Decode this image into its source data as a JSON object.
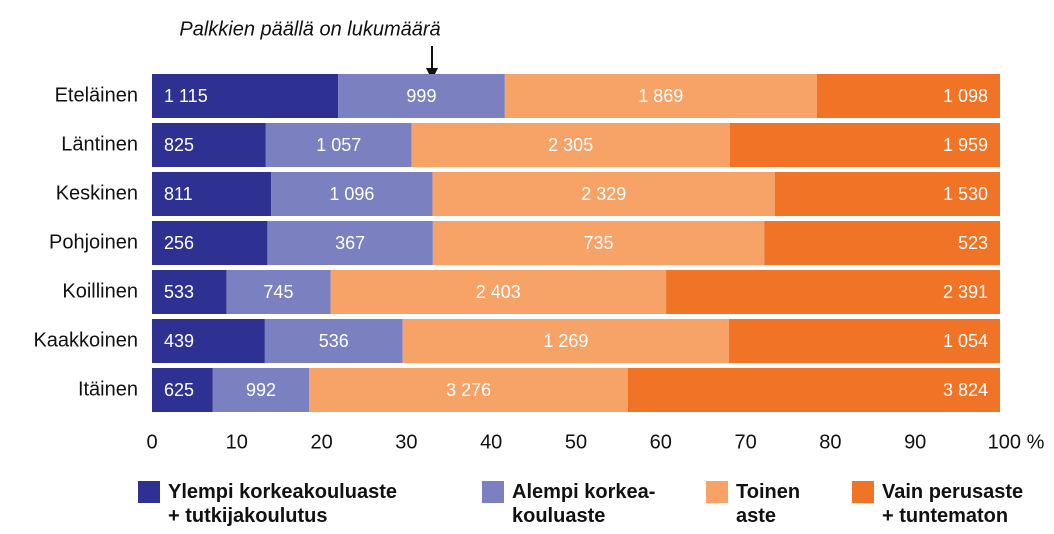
{
  "chart_data": {
    "type": "bar",
    "orientation": "horizontal",
    "stacked": "percent",
    "annotation": "Palkkien päällä on lukumäärä",
    "categories": [
      "Eteläinen",
      "Läntinen",
      "Keskinen",
      "Pohjoinen",
      "Koillinen",
      "Kaakkoinen",
      "Itäinen"
    ],
    "series": [
      {
        "name": "Ylempi korkeakouluaste\n+ tutkijakoulutus",
        "color": "#2e3192",
        "values": [
          1115,
          825,
          811,
          256,
          533,
          439,
          625
        ],
        "value_labels": [
          "1 115",
          "825",
          "811",
          "256",
          "533",
          "439",
          "625"
        ]
      },
      {
        "name": "Alempi korkea-\nkouluaste",
        "color": "#7a80c0",
        "values": [
          999,
          1057,
          1096,
          367,
          745,
          536,
          992
        ],
        "value_labels": [
          "999",
          "1 057",
          "1 096",
          "367",
          "745",
          "536",
          "992"
        ]
      },
      {
        "name": "Toinen\naste",
        "color": "#f7a266",
        "values": [
          1869,
          2305,
          2329,
          735,
          2403,
          1269,
          3276
        ],
        "value_labels": [
          "1 869",
          "2 305",
          "2 329",
          "735",
          "2 403",
          "1 269",
          "3 276"
        ]
      },
      {
        "name": "Vain perusaste\n+ tuntematon",
        "color": "#f07326",
        "values": [
          1098,
          1959,
          1530,
          523,
          2391,
          1054,
          3824
        ],
        "value_labels": [
          "1 098",
          "1 959",
          "1 530",
          "523",
          "2 391",
          "1 054",
          "3 824"
        ]
      }
    ],
    "xlim": [
      0,
      100
    ],
    "xticks": [
      0,
      10,
      20,
      30,
      40,
      50,
      60,
      70,
      80,
      90,
      {
        "value": 100,
        "label": "100 %"
      }
    ],
    "grid": false,
    "legend": "bottom"
  }
}
